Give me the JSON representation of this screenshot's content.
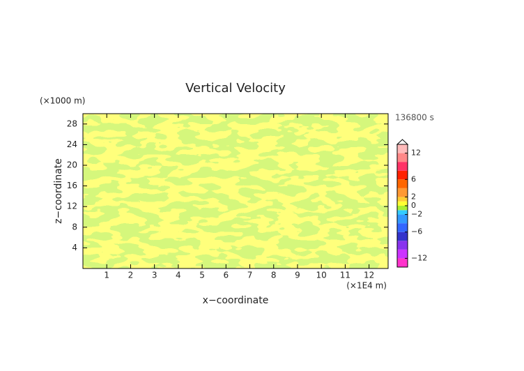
{
  "chart_data": {
    "type": "contour",
    "title": "Vertical Velocity",
    "x_label": "x−coordinate",
    "y_label": "z−coordinate",
    "x_unit": "(×1E4 m)",
    "y_unit": "(×1000 m)",
    "time_label": "136800 s",
    "xlim": [
      0,
      12.8
    ],
    "xticks": [
      1,
      2,
      3,
      4,
      5,
      6,
      7,
      8,
      9,
      10,
      11,
      12
    ],
    "ylim": [
      0,
      30
    ],
    "yticks": [
      4,
      8,
      12,
      16,
      20,
      24,
      28
    ],
    "colorbar": {
      "lim": [
        -14,
        14
      ],
      "levels": [
        -14,
        -12,
        -10,
        -8,
        -6,
        -4,
        -2,
        -1,
        0,
        1,
        2,
        4,
        6,
        8,
        10,
        12,
        14
      ],
      "colors": [
        "#ff33cc",
        "#cc33ff",
        "#8833ee",
        "#3333cc",
        "#3366ff",
        "#3399ff",
        "#33ccff",
        "#aaee33",
        "#ffff33",
        "#ffcc33",
        "#ff9933",
        "#ff6600",
        "#ff2200",
        "#ff3366",
        "#ff8888",
        "#ffbbbb"
      ],
      "ticks": [
        {
          "value": -12,
          "label": "−12"
        },
        {
          "value": -6,
          "label": "−6"
        },
        {
          "value": -2,
          "label": "−2"
        },
        0,
        2,
        6,
        12
      ]
    }
  }
}
